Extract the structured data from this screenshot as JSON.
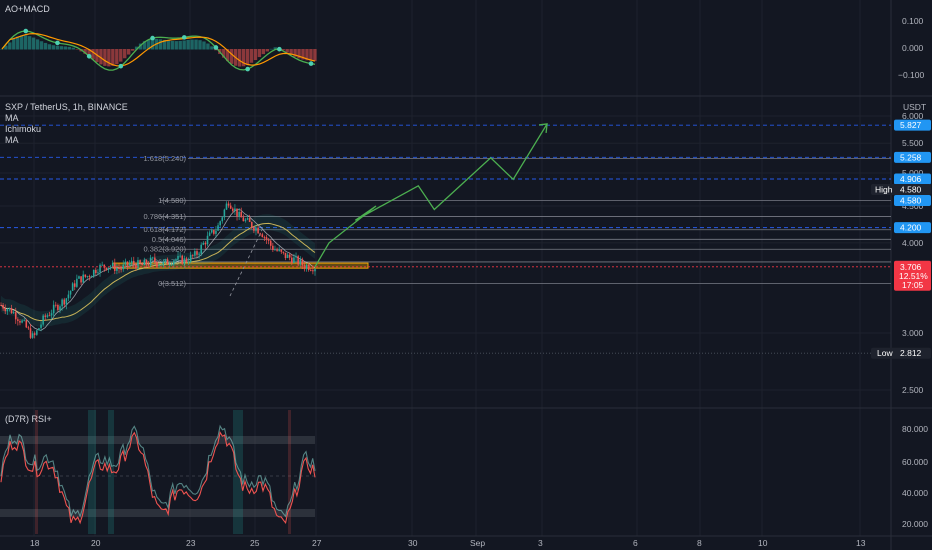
{
  "panes": {
    "macd_title": "AO+MACD",
    "main_title": "SXP / TetherUS, 1h, BINANCE",
    "indicators": [
      "MA",
      "Ichimoku",
      "MA"
    ],
    "rsi_title": "(D7R) RSI+",
    "currency": "USDT"
  },
  "price_axis": {
    "ticks": [
      "6.000",
      "5.500",
      "5.000",
      "4.500",
      "4.000",
      "3.000",
      "2.500"
    ]
  },
  "macd_axis": {
    "ticks": [
      "0.100",
      "0.000",
      "−0.100"
    ]
  },
  "rsi_axis": {
    "ticks": [
      "80.000",
      "60.000",
      "40.000",
      "20.000"
    ]
  },
  "time_axis": {
    "ticks": [
      "18",
      "20",
      "23",
      "25",
      "27",
      "30",
      "Sep",
      "3",
      "6",
      "8",
      "10",
      "13"
    ]
  },
  "fib_levels": [
    {
      "label": "1.618(5.240)",
      "value": 5.24
    },
    {
      "label": "1(4.580)",
      "value": 4.58
    },
    {
      "label": "0.786(4.351)",
      "value": 4.351
    },
    {
      "label": "0.618(4.172)",
      "value": 4.172
    },
    {
      "label": "0.5(4.046)",
      "value": 4.046
    },
    {
      "label": "0.382(3.920)",
      "value": 3.92
    },
    {
      "label": "0.236(3.764)",
      "value": 3.764
    },
    {
      "label": "0(3.512)",
      "value": 3.512
    }
  ],
  "price_badges": [
    {
      "text": "5.827",
      "value": 5.827,
      "color": "#2196f3"
    },
    {
      "text": "5.258",
      "value": 5.258,
      "color": "#2196f3"
    },
    {
      "text": "4.906",
      "value": 4.906,
      "color": "#2196f3"
    },
    {
      "text": "4.580",
      "value": 4.58,
      "color": "#2196f3"
    },
    {
      "text": "4.200",
      "value": 4.2,
      "color": "#2196f3"
    }
  ],
  "high_badge": {
    "label": "High",
    "text": "4.580",
    "value": 4.58
  },
  "low_badge": {
    "label": "Low",
    "text": "2.812",
    "value": 2.812
  },
  "last_price": {
    "price": "3.706",
    "change": "12.51%",
    "countdown": "17:05",
    "value": 3.706,
    "color": "#f23645"
  },
  "dashed_levels": [
    5.827,
    5.258,
    4.906,
    4.2
  ],
  "zone": {
    "low": 3.69,
    "high": 3.75,
    "color": "#f7a600"
  },
  "colors": {
    "up": "#26a69a",
    "down": "#ef5350",
    "projection": "#4caf50",
    "background": "#131722"
  },
  "chart_data": {
    "type": "line",
    "series": [
      {
        "values": [
          3.28,
          3.22,
          3.1,
          2.95,
          3.15,
          3.25,
          3.35,
          3.55,
          3.6,
          3.7,
          3.72,
          3.68,
          3.75,
          3.72,
          3.78,
          3.74,
          3.8,
          3.78,
          3.85,
          4.05,
          4.2,
          4.58,
          4.35,
          4.25,
          4.15,
          3.95,
          3.85,
          3.8,
          3.72,
          3.706
        ]
      },
      {
        "values": [
          3.706,
          4.0,
          4.5,
          4.3,
          4.8,
          4.45,
          5.25,
          4.9,
          5.85
        ]
      }
    ],
    "ylim": [
      2.4,
      6.1
    ]
  }
}
